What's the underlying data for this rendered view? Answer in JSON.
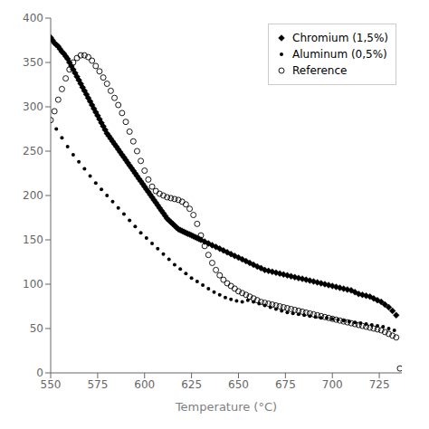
{
  "chart_data": {
    "type": "scatter",
    "xlabel": "Temperature (°C)",
    "xlim": [
      550,
      737
    ],
    "ylim": [
      0,
      400
    ],
    "xticks": [
      550,
      575,
      600,
      625,
      650,
      675,
      700,
      725
    ],
    "yticks": [
      0,
      50,
      100,
      150,
      200,
      250,
      300,
      350,
      400
    ],
    "grid": false,
    "legend": "upper right",
    "series": [
      {
        "name": "Chromium (1,5%)",
        "color": "#000000",
        "marker": "diamond",
        "x": [
          550,
          551,
          552,
          553,
          554,
          555,
          556,
          557,
          558,
          559,
          560,
          561,
          562,
          563,
          564,
          565,
          566,
          567,
          568,
          569,
          570,
          571,
          572,
          573,
          574,
          575,
          576,
          577,
          578,
          579,
          580,
          581,
          582,
          583,
          584,
          585,
          586,
          587,
          588,
          589,
          590,
          591,
          592,
          593,
          594,
          595,
          596,
          597,
          598,
          599,
          600,
          601,
          602,
          603,
          604,
          605,
          606,
          607,
          608,
          609,
          610,
          611,
          612,
          613,
          614,
          615,
          616,
          617,
          618,
          619,
          620,
          621,
          622,
          623,
          624,
          625,
          626,
          627,
          628,
          629,
          630,
          632,
          634,
          636,
          638,
          640,
          642,
          644,
          646,
          648,
          650,
          652,
          654,
          656,
          658,
          660,
          662,
          664,
          666,
          668,
          670,
          672,
          674,
          676,
          678,
          680,
          682,
          684,
          686,
          688,
          690,
          692,
          694,
          696,
          698,
          700,
          702,
          704,
          706,
          708,
          710,
          712,
          714,
          716,
          718,
          720,
          722,
          724,
          726,
          728,
          730,
          732,
          734
        ],
        "values": [
          378,
          375,
          372,
          370,
          368,
          365,
          362,
          360,
          357,
          354,
          350,
          346,
          342,
          338,
          334,
          330,
          326,
          322,
          318,
          314,
          310,
          306,
          302,
          298,
          294,
          290,
          286,
          282,
          278,
          274,
          270,
          267,
          264,
          261,
          258,
          255,
          252,
          249,
          246,
          243,
          240,
          237,
          234,
          231,
          228,
          225,
          222,
          219,
          216,
          213,
          210,
          207,
          204,
          201,
          198,
          195,
          192,
          189,
          186,
          183,
          180,
          177,
          174,
          172,
          170,
          168,
          166,
          164,
          162,
          161,
          160,
          159,
          158,
          157,
          156,
          155,
          154,
          153,
          152,
          151,
          150,
          148,
          146,
          144,
          142,
          140,
          138,
          136,
          134,
          132,
          130,
          128,
          126,
          124,
          122,
          120,
          118,
          116,
          115,
          114,
          113,
          112,
          111,
          110,
          109,
          108,
          107,
          106,
          105,
          104,
          103,
          102,
          101,
          100,
          99,
          98,
          97,
          96,
          95,
          94,
          93,
          91,
          89,
          88,
          87,
          86,
          84,
          82,
          80,
          77,
          74,
          70,
          65
        ]
      },
      {
        "name": "Aluminum (0,5%)",
        "color": "#000000",
        "marker": "point",
        "x": [
          553,
          556,
          559,
          562,
          565,
          568,
          571,
          574,
          577,
          580,
          583,
          586,
          589,
          592,
          595,
          598,
          601,
          604,
          607,
          610,
          613,
          616,
          619,
          622,
          625,
          628,
          631,
          634,
          637,
          640,
          643,
          646,
          649,
          652,
          655,
          658,
          661,
          664,
          667,
          670,
          673,
          676,
          679,
          682,
          685,
          688,
          691,
          694,
          697,
          700,
          703,
          706,
          709,
          712,
          715,
          718,
          721,
          724,
          727,
          730,
          733
        ],
        "values": [
          275,
          265,
          255,
          246,
          238,
          230,
          222,
          214,
          207,
          200,
          193,
          186,
          179,
          172,
          165,
          158,
          152,
          146,
          140,
          134,
          128,
          122,
          117,
          112,
          107,
          103,
          99,
          95,
          91,
          88,
          85,
          83,
          81,
          80,
          82,
          80,
          78,
          76,
          74,
          72,
          70,
          68,
          67,
          66,
          65,
          64,
          63,
          62,
          62,
          61,
          60,
          59,
          58,
          57,
          56,
          55,
          54,
          53,
          52,
          50,
          48
        ]
      },
      {
        "name": "Reference",
        "color": "#000000",
        "marker": "open_circle",
        "x": [
          550,
          552,
          554,
          556,
          558,
          560,
          562,
          564,
          566,
          568,
          570,
          572,
          574,
          576,
          578,
          580,
          582,
          584,
          586,
          588,
          590,
          592,
          594,
          596,
          598,
          600,
          602,
          604,
          606,
          608,
          610,
          612,
          614,
          616,
          618,
          620,
          622,
          624,
          626,
          628,
          630,
          632,
          634,
          636,
          638,
          640,
          642,
          644,
          646,
          648,
          650,
          652,
          654,
          656,
          658,
          660,
          662,
          664,
          666,
          668,
          670,
          672,
          674,
          676,
          678,
          680,
          682,
          684,
          686,
          688,
          690,
          692,
          694,
          696,
          698,
          700,
          702,
          704,
          706,
          708,
          710,
          712,
          714,
          716,
          718,
          720,
          722,
          724,
          726,
          728,
          730,
          732,
          734,
          736
        ],
        "values": [
          285,
          295,
          308,
          320,
          332,
          342,
          350,
          355,
          358,
          358,
          356,
          352,
          346,
          340,
          333,
          326,
          318,
          310,
          302,
          293,
          283,
          272,
          261,
          250,
          239,
          228,
          218,
          210,
          205,
          202,
          200,
          198,
          197,
          196,
          195,
          193,
          190,
          185,
          178,
          168,
          155,
          143,
          133,
          124,
          116,
          110,
          105,
          101,
          98,
          95,
          92,
          90,
          88,
          86,
          84,
          82,
          80,
          79,
          78,
          77,
          76,
          75,
          74,
          73,
          72,
          71,
          70,
          69,
          68,
          67,
          66,
          65,
          64,
          63,
          62,
          61,
          60,
          59,
          58,
          57,
          56,
          55,
          54,
          53,
          52,
          51,
          50,
          49,
          48,
          46,
          44,
          42,
          40,
          5
        ]
      }
    ]
  }
}
